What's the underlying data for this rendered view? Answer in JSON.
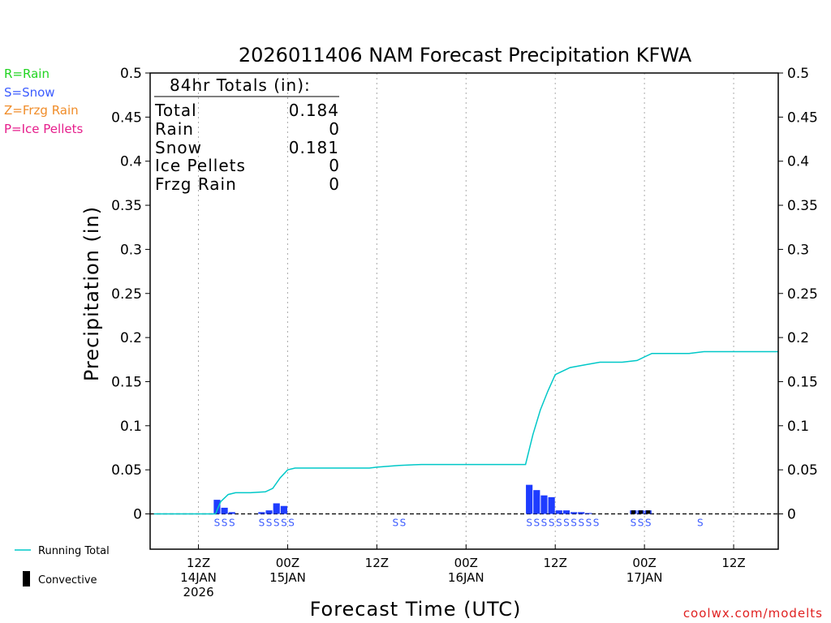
{
  "chart_data": {
    "type": "bar",
    "title": "2026011406 NAM Forecast Precipitation KFWA",
    "xlabel": "Forecast Time (UTC)",
    "ylabel": "Precipitation (in)",
    "ylim": [
      -0.04,
      0.5
    ],
    "y_ticks": [
      0,
      0.05,
      0.1,
      0.15,
      0.2,
      0.25,
      0.3,
      0.35,
      0.4,
      0.45,
      0.5
    ],
    "y_tick_labels": [
      "0",
      "0.05",
      "0.1",
      "0.15",
      "0.2",
      "0.25",
      "0.3",
      "0.35",
      "0.4",
      "0.45",
      "0.5"
    ],
    "xlim_hours": [
      -0.5,
      84
    ],
    "x_ticks": [
      {
        "hour": 6,
        "line1": "12Z",
        "line2": "14JAN",
        "line3": "2026"
      },
      {
        "hour": 18,
        "line1": "00Z",
        "line2": "15JAN",
        "line3": ""
      },
      {
        "hour": 30,
        "line1": "12Z",
        "line2": "",
        "line3": ""
      },
      {
        "hour": 42,
        "line1": "00Z",
        "line2": "16JAN",
        "line3": ""
      },
      {
        "hour": 54,
        "line1": "12Z",
        "line2": "",
        "line3": ""
      },
      {
        "hour": 66,
        "line1": "00Z",
        "line2": "17JAN",
        "line3": ""
      },
      {
        "hour": 78,
        "line1": "12Z",
        "line2": "",
        "line3": ""
      }
    ],
    "hourly_precip": [
      {
        "hour": 9,
        "value": 0.016,
        "convective": 0
      },
      {
        "hour": 10,
        "value": 0.007,
        "convective": 0
      },
      {
        "hour": 11,
        "value": 0.002,
        "convective": 0
      },
      {
        "hour": 15,
        "value": 0.002,
        "convective": 0
      },
      {
        "hour": 16,
        "value": 0.004,
        "convective": 0
      },
      {
        "hour": 17,
        "value": 0.012,
        "convective": 0
      },
      {
        "hour": 18,
        "value": 0.009,
        "convective": 0
      },
      {
        "hour": 51,
        "value": 0.033,
        "convective": 0
      },
      {
        "hour": 52,
        "value": 0.027,
        "convective": 0
      },
      {
        "hour": 53,
        "value": 0.021,
        "convective": 0
      },
      {
        "hour": 54,
        "value": 0.019,
        "convective": 0
      },
      {
        "hour": 55,
        "value": 0.004,
        "convective": 0
      },
      {
        "hour": 56,
        "value": 0.004,
        "convective": 0
      },
      {
        "hour": 57,
        "value": 0.002,
        "convective": 0
      },
      {
        "hour": 58,
        "value": 0.002,
        "convective": 0
      },
      {
        "hour": 59,
        "value": 0.001,
        "convective": 0
      },
      {
        "hour": 65,
        "value": 0.004,
        "convective": 0.004
      },
      {
        "hour": 66,
        "value": 0.004,
        "convective": 0.004
      },
      {
        "hour": 67,
        "value": 0.004,
        "convective": 0.004
      }
    ],
    "running_total": [
      {
        "hour": 0,
        "value": 0
      },
      {
        "hour": 8.3,
        "value": 0
      },
      {
        "hour": 9,
        "value": 0.014
      },
      {
        "hour": 10,
        "value": 0.022
      },
      {
        "hour": 11,
        "value": 0.024
      },
      {
        "hour": 13,
        "value": 0.024
      },
      {
        "hour": 15,
        "value": 0.025
      },
      {
        "hour": 16,
        "value": 0.029
      },
      {
        "hour": 17,
        "value": 0.041
      },
      {
        "hour": 18,
        "value": 0.05
      },
      {
        "hour": 19,
        "value": 0.052
      },
      {
        "hour": 29,
        "value": 0.052
      },
      {
        "hour": 30,
        "value": 0.053
      },
      {
        "hour": 33,
        "value": 0.055
      },
      {
        "hour": 36,
        "value": 0.056
      },
      {
        "hour": 44,
        "value": 0.056
      },
      {
        "hour": 50,
        "value": 0.056
      },
      {
        "hour": 51,
        "value": 0.09
      },
      {
        "hour": 52,
        "value": 0.118
      },
      {
        "hour": 53,
        "value": 0.139
      },
      {
        "hour": 54,
        "value": 0.158
      },
      {
        "hour": 55,
        "value": 0.162
      },
      {
        "hour": 56,
        "value": 0.166
      },
      {
        "hour": 58,
        "value": 0.169
      },
      {
        "hour": 60,
        "value": 0.172
      },
      {
        "hour": 63,
        "value": 0.172
      },
      {
        "hour": 65,
        "value": 0.174
      },
      {
        "hour": 66,
        "value": 0.178
      },
      {
        "hour": 67,
        "value": 0.182
      },
      {
        "hour": 72,
        "value": 0.182
      },
      {
        "hour": 73,
        "value": 0.183
      },
      {
        "hour": 74,
        "value": 0.184
      },
      {
        "hour": 84,
        "value": 0.184
      }
    ],
    "ptype_markers": [
      {
        "hour": 9,
        "label": "S"
      },
      {
        "hour": 10,
        "label": "S"
      },
      {
        "hour": 11,
        "label": "S"
      },
      {
        "hour": 15,
        "label": "S"
      },
      {
        "hour": 16,
        "label": "S"
      },
      {
        "hour": 17,
        "label": "S"
      },
      {
        "hour": 18,
        "label": "S"
      },
      {
        "hour": 19,
        "label": "S"
      },
      {
        "hour": 33,
        "label": "S"
      },
      {
        "hour": 34,
        "label": "S"
      },
      {
        "hour": 51,
        "label": "S"
      },
      {
        "hour": 52,
        "label": "S"
      },
      {
        "hour": 53,
        "label": "S"
      },
      {
        "hour": 54,
        "label": "S"
      },
      {
        "hour": 55,
        "label": "S"
      },
      {
        "hour": 56,
        "label": "S"
      },
      {
        "hour": 57,
        "label": "S"
      },
      {
        "hour": 58,
        "label": "S"
      },
      {
        "hour": 59,
        "label": "S"
      },
      {
        "hour": 60,
        "label": "S"
      },
      {
        "hour": 65,
        "label": "S"
      },
      {
        "hour": 66,
        "label": "S"
      },
      {
        "hour": 67,
        "label": "S"
      },
      {
        "hour": 74,
        "label": "S"
      }
    ],
    "series": [
      {
        "name": "Running Total",
        "color": "#00c8c8"
      },
      {
        "name": "Convective",
        "color": "#000000"
      },
      {
        "name": "Snow",
        "color": "#1e3cff"
      }
    ]
  },
  "legend": {
    "rain": {
      "label": "R=Rain",
      "color": "#22d422"
    },
    "snow": {
      "label": "S=Snow",
      "color": "#3c5cff"
    },
    "frzg": {
      "label": "Z=Frzg Rain",
      "color": "#f08c28"
    },
    "ice": {
      "label": "P=Ice Pellets",
      "color": "#e61e8c"
    },
    "running_total": "Running Total",
    "convective": "Convective"
  },
  "totals": {
    "header": "84hr Totals (in):",
    "rows": [
      {
        "label": "Total",
        "value": "0.184"
      },
      {
        "label": "Rain",
        "value": "0"
      },
      {
        "label": "Snow",
        "value": "0.181"
      },
      {
        "label": "Ice Pellets",
        "value": "0"
      },
      {
        "label": "Frzg Rain",
        "value": "0"
      }
    ]
  },
  "credit": "coolwx.com/modelts",
  "colors": {
    "bar": "#1e3cff",
    "running_total": "#00c8c8",
    "convective": "#000000",
    "grid": "#aaaaaa",
    "ptype_snow": "#3c5cff",
    "credit": "#e02020"
  }
}
